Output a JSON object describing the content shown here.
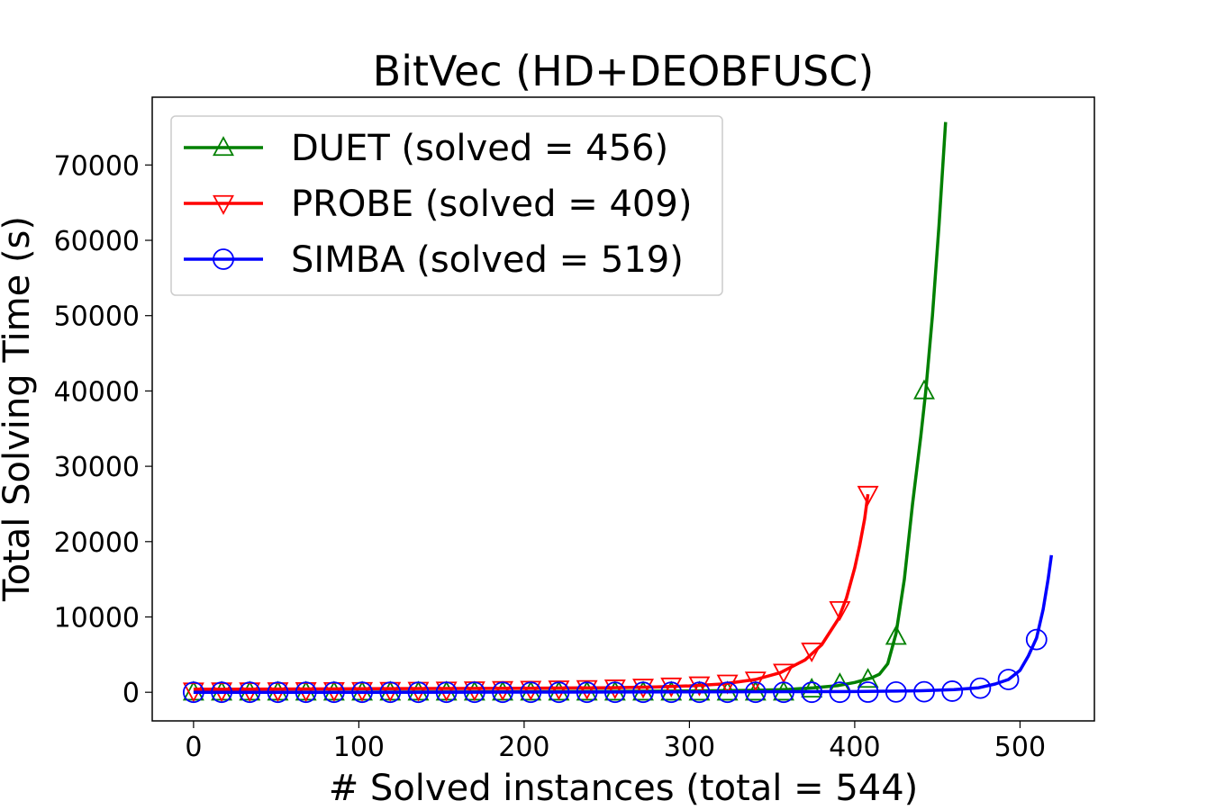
{
  "chart_data": {
    "type": "line",
    "title": "BitVec (HD+DEOBFUSC)",
    "xlabel": "# Solved instances (total = 544)",
    "ylabel": "Total Solving Time (s)",
    "xlim": [
      -25,
      545
    ],
    "ylim": [
      -3800,
      79000
    ],
    "xticks": [
      0,
      100,
      200,
      300,
      400,
      500
    ],
    "yticks": [
      0,
      10000,
      20000,
      30000,
      40000,
      50000,
      60000,
      70000
    ],
    "grid": false,
    "legend_position": "upper-left",
    "series": [
      {
        "name": "DUET (solved = 456)",
        "color": "#008000",
        "marker": "triangle-up",
        "line": {
          "x": [
            0,
            50,
            100,
            150,
            200,
            250,
            300,
            340,
            360,
            375,
            390,
            400,
            410,
            415,
            420,
            425,
            430,
            435,
            440,
            443,
            447,
            451,
            455
          ],
          "y": [
            0,
            10,
            20,
            40,
            70,
            110,
            180,
            260,
            380,
            600,
            900,
            1300,
            1900,
            2400,
            3800,
            7800,
            15000,
            25000,
            34000,
            40000,
            50000,
            62000,
            75700
          ]
        },
        "markers": {
          "x": [
            0,
            17,
            34,
            51,
            68,
            85,
            102,
            119,
            136,
            153,
            170,
            187,
            204,
            221,
            238,
            255,
            272,
            289,
            306,
            323,
            340,
            357,
            374,
            391,
            408,
            425,
            442
          ],
          "y": [
            0,
            0,
            0,
            0,
            0,
            0,
            0,
            0,
            0,
            0,
            0,
            0,
            0,
            0,
            0,
            0,
            0,
            0,
            0,
            0,
            0,
            0,
            400,
            1100,
            1700,
            7400,
            40000
          ]
        }
      },
      {
        "name": "PROBE (solved = 409)",
        "color": "#ff0000",
        "marker": "triangle-down",
        "line": {
          "x": [
            0,
            50,
            100,
            150,
            200,
            250,
            280,
            300,
            320,
            340,
            355,
            370,
            380,
            390,
            395,
            400,
            403,
            406,
            408
          ],
          "y": [
            400,
            430,
            460,
            500,
            540,
            600,
            700,
            850,
            1100,
            1700,
            2600,
            4300,
            6300,
            9700,
            12500,
            16500,
            19500,
            23000,
            26300
          ]
        },
        "markers": {
          "x": [
            0,
            17,
            34,
            51,
            68,
            85,
            102,
            119,
            136,
            153,
            170,
            187,
            204,
            221,
            238,
            255,
            272,
            289,
            306,
            323,
            340,
            357,
            374,
            391,
            408
          ],
          "y": [
            200,
            210,
            220,
            230,
            240,
            250,
            260,
            270,
            290,
            320,
            350,
            390,
            430,
            470,
            520,
            600,
            700,
            850,
            1000,
            1250,
            1650,
            2700,
            5500,
            11000,
            26300
          ]
        }
      },
      {
        "name": "SIMBA (solved = 519)",
        "color": "#0000ff",
        "marker": "circle",
        "line": {
          "x": [
            0,
            100,
            200,
            300,
            400,
            440,
            460,
            475,
            485,
            493,
            500,
            505,
            510,
            514,
            517,
            519
          ],
          "y": [
            0,
            0,
            20,
            50,
            100,
            200,
            350,
            600,
            1100,
            1700,
            2900,
            4800,
            7200,
            11000,
            15000,
            18200
          ]
        },
        "markers": {
          "x": [
            0,
            17,
            34,
            51,
            68,
            85,
            102,
            119,
            136,
            153,
            170,
            187,
            204,
            221,
            238,
            255,
            272,
            289,
            306,
            323,
            340,
            357,
            374,
            391,
            408,
            425,
            442,
            459,
            476,
            493,
            510
          ],
          "y": [
            0,
            0,
            0,
            0,
            0,
            0,
            0,
            0,
            0,
            0,
            0,
            0,
            0,
            0,
            0,
            0,
            0,
            0,
            0,
            0,
            0,
            0,
            0,
            0,
            20,
            40,
            70,
            150,
            550,
            1700,
            7000
          ]
        }
      }
    ]
  }
}
